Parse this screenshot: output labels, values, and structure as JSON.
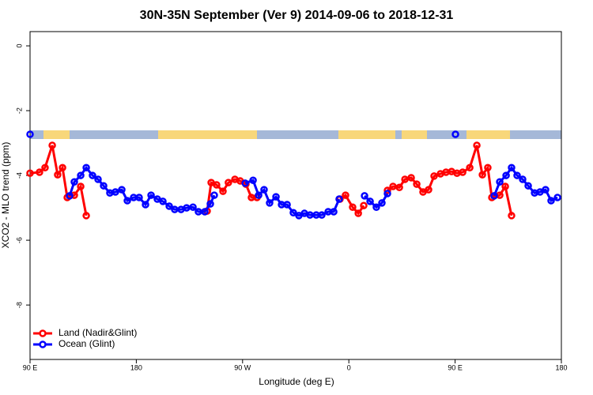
{
  "chart_data": {
    "type": "line",
    "title": "30N-35N September (Ver 9)   2014-09-06 to 2018-12-31",
    "x_label": "Longitude (deg E)",
    "y_label": "XCO2 - MLO trend (ppm)",
    "xlim": [
      90,
      540
    ],
    "ylim": [
      -9.68,
      0.44
    ],
    "xticks": [
      {
        "value": 90,
        "label": "90 E"
      },
      180,
      {
        "value": 270,
        "label": "90 W"
      },
      {
        "value": 360,
        "label": "0"
      },
      {
        "value": 450,
        "label": "90 E"
      },
      {
        "value": 540,
        "label": "180"
      }
    ],
    "yticks": [
      0,
      -2,
      -4,
      -6,
      -8
    ],
    "legend": "bottomleft",
    "series": [
      {
        "name": "Land (Nadir&Glint)",
        "color": "#ff0000",
        "x": [
          90,
          98,
          102.7,
          108.8,
          113.4,
          117.5,
          121.5,
          127.5,
          132.9,
          137.6,
          null,
          240,
          243.4,
          248,
          253.4,
          258,
          263.5,
          268,
          272.8,
          277.5,
          282.2,
          null,
          352.5,
          357.2,
          363.2,
          368,
          372.6,
          null,
          392.7,
          397.4,
          402.8,
          407.5,
          412.8,
          417.5,
          422.8,
          427.5,
          432.2,
          437.6,
          442.3,
          447,
          451.6,
          456.4,
          462.4,
          468.4,
          473.1,
          477.7,
          481.1,
          487.8,
          492.5,
          497.8
        ],
        "values": [
          -3.93,
          -3.9,
          -3.76,
          -3.07,
          -3.98,
          -3.76,
          -4.68,
          -4.61,
          -4.34,
          -5.24,
          null,
          -5.1,
          -4.22,
          -4.29,
          -4.49,
          -4.22,
          -4.12,
          -4.17,
          -4.27,
          -4.68,
          -4.68,
          null,
          -4.73,
          -4.61,
          -4.98,
          -5.17,
          -4.93,
          null,
          -4.46,
          -4.34,
          -4.37,
          -4.12,
          -4.07,
          -4.27,
          -4.51,
          -4.44,
          -4.02,
          -3.95,
          -3.9,
          -3.88,
          -3.93,
          -3.9,
          -3.76,
          -3.07,
          -3.98,
          -3.76,
          -4.68,
          -4.61,
          -4.34,
          -5.24
        ]
      },
      {
        "name": "Ocean (Glint)",
        "color": "#0000ff",
        "x": [
          90,
          null,
          123.5,
          127.5,
          132.9,
          137.6,
          142.9,
          147.6,
          152.3,
          157.6,
          162.3,
          167.7,
          172.4,
          177.7,
          182.4,
          187.8,
          192.5,
          197.8,
          202.5,
          207.9,
          212.5,
          217.9,
          222.6,
          228,
          232.6,
          238,
          242.7,
          246,
          null,
          272.2,
          278.9,
          283.6,
          288.2,
          292.9,
          298.3,
          303,
          307.7,
          313,
          317.7,
          322.4,
          327.1,
          332.4,
          337.1,
          342.5,
          347.2,
          351.8,
          null,
          373.3,
          378,
          383.3,
          388,
          392.7,
          null,
          450.3,
          null,
          483.1,
          487.8,
          493.2,
          497.8,
          502.5,
          507.2,
          511.9,
          517.3,
          521.9,
          526.6,
          531.3,
          536.7
        ],
        "values": [
          -2.73,
          null,
          -4.63,
          -4.2,
          -4.0,
          -3.76,
          -4.0,
          -4.12,
          -4.32,
          -4.54,
          -4.51,
          -4.44,
          -4.78,
          -4.68,
          -4.68,
          -4.9,
          -4.61,
          -4.73,
          -4.8,
          -4.95,
          -5.05,
          -5.05,
          -5.0,
          -4.98,
          -5.12,
          -5.12,
          -4.88,
          -4.61,
          null,
          -4.24,
          -4.15,
          -4.61,
          -4.44,
          -4.85,
          -4.66,
          -4.9,
          -4.9,
          -5.15,
          -5.24,
          -5.17,
          -5.22,
          -5.22,
          -5.22,
          -5.12,
          -5.12,
          -4.73,
          null,
          -4.63,
          -4.8,
          -4.98,
          -4.85,
          -4.56,
          null,
          -2.73,
          null,
          -4.63,
          -4.2,
          -4.0,
          -3.76,
          -4.0,
          -4.12,
          -4.32,
          -4.54,
          -4.51,
          -4.44,
          -4.78,
          -4.68
        ]
      }
    ]
  }
}
